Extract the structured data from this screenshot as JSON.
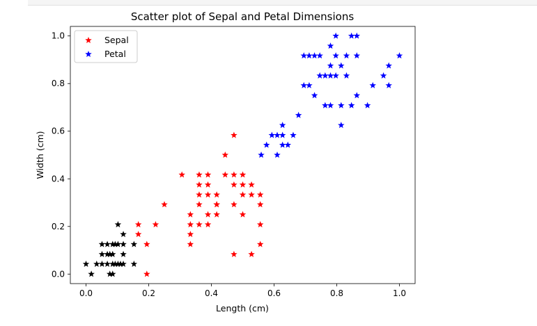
{
  "chart_data": {
    "type": "scatter",
    "title": "Scatter plot of Sepal and Petal Dimensions",
    "xlabel": "Length (cm)",
    "ylabel": "Width (cm)",
    "xlim": [
      -0.05,
      1.05
    ],
    "ylim": [
      -0.04,
      1.04
    ],
    "xticks": [
      "0.0",
      "0.2",
      "0.4",
      "0.6",
      "0.8",
      "1.0"
    ],
    "yticks": [
      "0.0",
      "0.2",
      "0.4",
      "0.6",
      "0.8",
      "1.0"
    ],
    "grid": false,
    "legend_position": "top-left",
    "marker": "star",
    "series": [
      {
        "name": "Sepal",
        "color": "#ff0000",
        "points": [
          [
            0.167,
            0.208
          ],
          [
            0.194,
            0.125
          ],
          [
            0.222,
            0.208
          ],
          [
            0.25,
            0.292
          ],
          [
            0.306,
            0.417
          ],
          [
            0.194,
            0.0
          ],
          [
            0.167,
            0.167
          ],
          [
            0.333,
            0.125
          ],
          [
            0.333,
            0.167
          ],
          [
            0.333,
            0.208
          ],
          [
            0.333,
            0.25
          ],
          [
            0.361,
            0.208
          ],
          [
            0.361,
            0.292
          ],
          [
            0.361,
            0.333
          ],
          [
            0.361,
            0.375
          ],
          [
            0.361,
            0.417
          ],
          [
            0.389,
            0.208
          ],
          [
            0.389,
            0.25
          ],
          [
            0.389,
            0.333
          ],
          [
            0.389,
            0.375
          ],
          [
            0.389,
            0.417
          ],
          [
            0.417,
            0.25
          ],
          [
            0.417,
            0.292
          ],
          [
            0.417,
            0.333
          ],
          [
            0.444,
            0.417
          ],
          [
            0.444,
            0.5
          ],
          [
            0.472,
            0.083
          ],
          [
            0.472,
            0.292
          ],
          [
            0.472,
            0.375
          ],
          [
            0.472,
            0.417
          ],
          [
            0.472,
            0.583
          ],
          [
            0.5,
            0.25
          ],
          [
            0.5,
            0.333
          ],
          [
            0.5,
            0.375
          ],
          [
            0.5,
            0.417
          ],
          [
            0.528,
            0.083
          ],
          [
            0.528,
            0.333
          ],
          [
            0.528,
            0.375
          ],
          [
            0.556,
            0.125
          ],
          [
            0.556,
            0.208
          ],
          [
            0.556,
            0.292
          ],
          [
            0.556,
            0.333
          ],
          [
            0.417,
            0.292
          ]
        ]
      },
      {
        "name": "Petal",
        "color": "#0000ff",
        "points": [
          [
            0.559,
            0.5
          ],
          [
            0.576,
            0.542
          ],
          [
            0.593,
            0.583
          ],
          [
            0.61,
            0.5
          ],
          [
            0.61,
            0.583
          ],
          [
            0.627,
            0.542
          ],
          [
            0.627,
            0.583
          ],
          [
            0.627,
            0.625
          ],
          [
            0.644,
            0.542
          ],
          [
            0.661,
            0.583
          ],
          [
            0.678,
            0.667
          ],
          [
            0.695,
            0.792
          ],
          [
            0.712,
            0.792
          ],
          [
            0.695,
            0.917
          ],
          [
            0.712,
            0.917
          ],
          [
            0.729,
            0.917
          ],
          [
            0.746,
            0.917
          ],
          [
            0.729,
            0.75
          ],
          [
            0.746,
            0.833
          ],
          [
            0.763,
            0.833
          ],
          [
            0.763,
            0.708
          ],
          [
            0.78,
            0.708
          ],
          [
            0.78,
            0.833
          ],
          [
            0.78,
            0.875
          ],
          [
            0.78,
            0.958
          ],
          [
            0.797,
            0.833
          ],
          [
            0.797,
            0.917
          ],
          [
            0.797,
            1.0
          ],
          [
            0.814,
            0.625
          ],
          [
            0.814,
            0.708
          ],
          [
            0.814,
            0.875
          ],
          [
            0.831,
            0.833
          ],
          [
            0.831,
            0.917
          ],
          [
            0.847,
            0.708
          ],
          [
            0.847,
            1.0
          ],
          [
            0.864,
            0.75
          ],
          [
            0.864,
            0.917
          ],
          [
            0.864,
            1.0
          ],
          [
            0.898,
            0.708
          ],
          [
            0.915,
            0.792
          ],
          [
            0.949,
            0.833
          ],
          [
            0.966,
            0.875
          ],
          [
            0.966,
            0.792
          ],
          [
            1.0,
            0.917
          ]
        ]
      },
      {
        "color": "#000000",
        "points": [
          [
            0.0,
            0.042
          ],
          [
            0.017,
            0.0
          ],
          [
            0.034,
            0.042
          ],
          [
            0.051,
            0.042
          ],
          [
            0.051,
            0.083
          ],
          [
            0.051,
            0.125
          ],
          [
            0.068,
            0.042
          ],
          [
            0.068,
            0.083
          ],
          [
            0.076,
            0.0
          ],
          [
            0.076,
            0.083
          ],
          [
            0.085,
            0.0
          ],
          [
            0.085,
            0.042
          ],
          [
            0.085,
            0.083
          ],
          [
            0.085,
            0.125
          ],
          [
            0.093,
            0.042
          ],
          [
            0.102,
            0.042
          ],
          [
            0.102,
            0.125
          ],
          [
            0.102,
            0.208
          ],
          [
            0.11,
            0.042
          ],
          [
            0.119,
            0.083
          ],
          [
            0.119,
            0.125
          ],
          [
            0.119,
            0.167
          ],
          [
            0.153,
            0.042
          ],
          [
            0.153,
            0.125
          ],
          [
            0.068,
            0.125
          ],
          [
            0.093,
            0.125
          ],
          [
            0.119,
            0.042
          ]
        ]
      }
    ]
  }
}
